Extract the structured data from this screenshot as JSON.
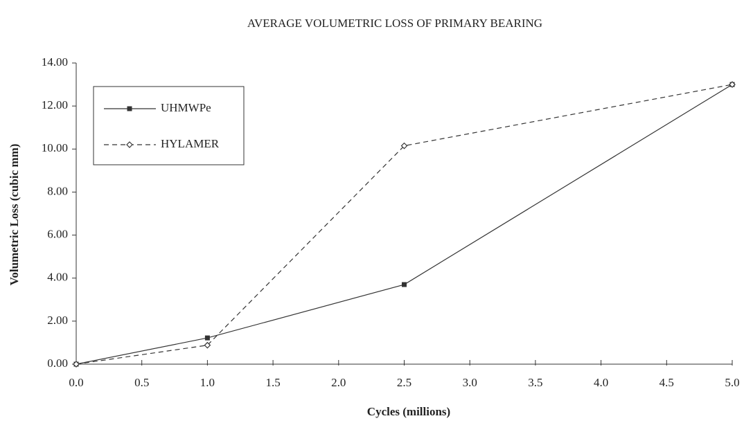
{
  "chart_data": {
    "type": "line",
    "title": "AVERAGE VOLUMETRIC LOSS OF PRIMARY BEARING",
    "xlabel": "Cycles (millions)",
    "ylabel": "Volumetric Loss (cubic mm)",
    "x": [
      0,
      1,
      2.5,
      5
    ],
    "series": [
      {
        "name": "UHMWPe",
        "color": "#333333",
        "dash": false,
        "marker": "square",
        "values": [
          0,
          1.22,
          3.7,
          13.0
        ]
      },
      {
        "name": "HYLAMER",
        "color": "#333333",
        "dash": true,
        "marker": "diamond",
        "values": [
          0,
          0.88,
          10.15,
          13.0
        ]
      }
    ],
    "xlim": [
      0,
      5
    ],
    "xticks": [
      {
        "value": 0,
        "label": "0.0"
      },
      0.5,
      {
        "value": 1,
        "label": "1.0"
      },
      1.5,
      {
        "value": 2,
        "label": "2.0"
      },
      2.5,
      {
        "value": 3,
        "label": "3.0"
      },
      3.5,
      {
        "value": 4,
        "label": "4.0"
      },
      4.5,
      {
        "value": 5,
        "label": "5.0"
      }
    ],
    "ylim": [
      0,
      14
    ],
    "yticks": [
      {
        "value": 0,
        "label": "0.00"
      },
      {
        "value": 2,
        "label": "2.00"
      },
      {
        "value": 4,
        "label": "4.00"
      },
      {
        "value": 6,
        "label": "6.00"
      },
      {
        "value": 8,
        "label": "8.00"
      },
      {
        "value": 10,
        "label": "10.00"
      },
      {
        "value": 12,
        "label": "12.00"
      },
      {
        "value": 14,
        "label": "14.00"
      }
    ],
    "legend": "upper left",
    "grid": false
  }
}
